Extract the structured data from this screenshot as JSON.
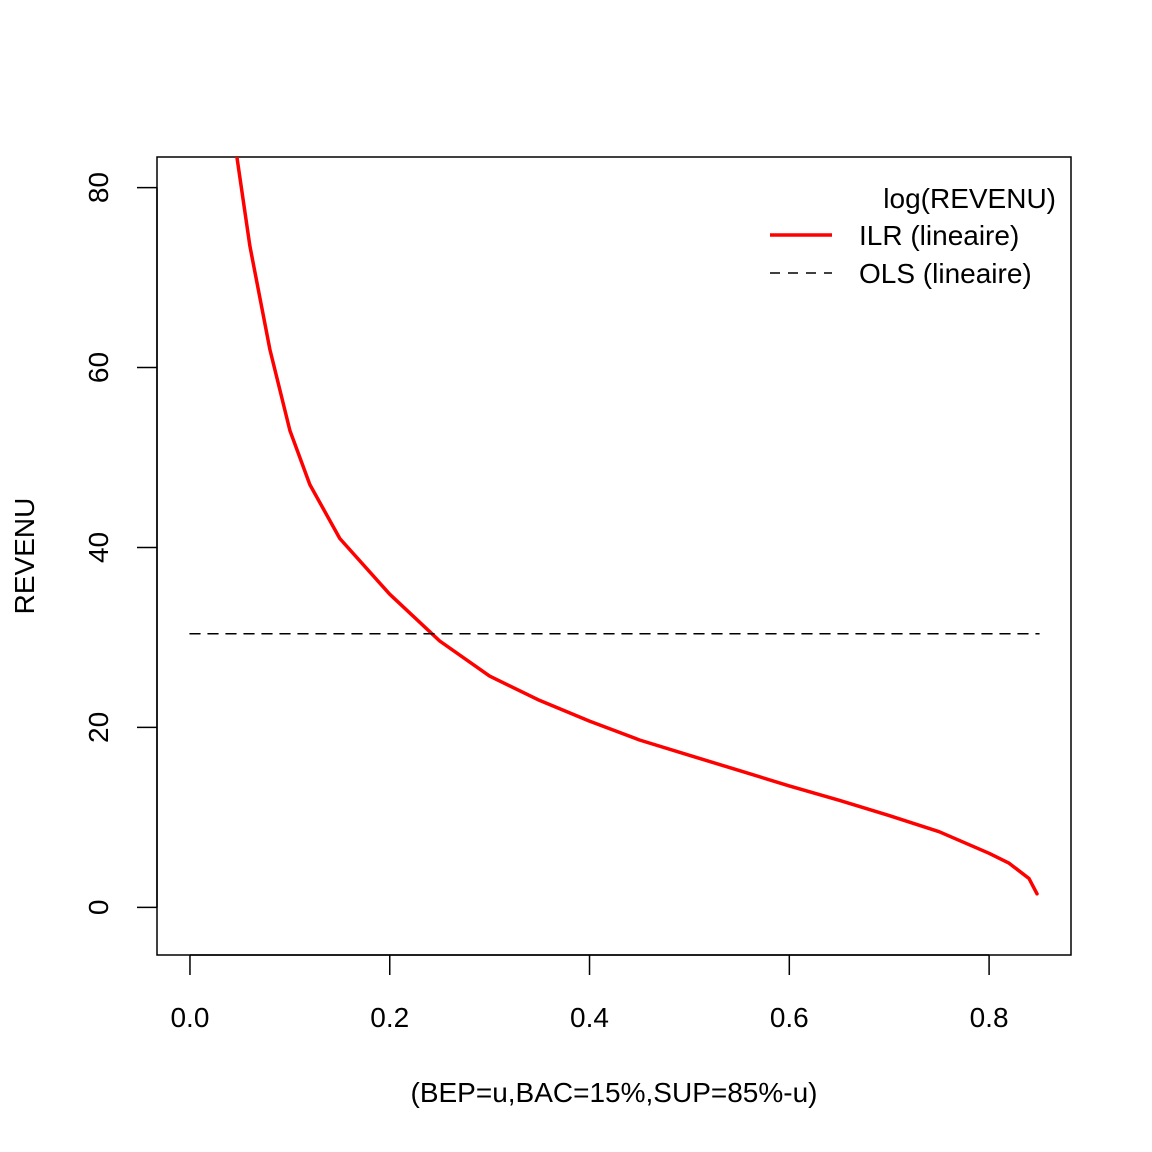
{
  "chart_data": {
    "type": "line",
    "xlabel": "(BEP=u,BAC=15%,SUP=85%-u)",
    "ylabel": "REVENU",
    "xlim": [
      -0.033,
      0.882
    ],
    "ylim": [
      -5.3,
      83.4
    ],
    "x_ticks": [
      "0.0",
      "0.2",
      "0.4",
      "0.6",
      "0.8"
    ],
    "y_ticks": [
      "0",
      "20",
      "40",
      "60",
      "80"
    ],
    "grid": false,
    "legend": {
      "placement": "top-right",
      "title": "log(REVENU)",
      "entries": [
        "ILR (lineaire)",
        "OLS (lineaire)"
      ]
    },
    "colors": {
      "ilr": "#ff0000",
      "ols": "#000000"
    },
    "series": [
      {
        "name": "ILR (lineaire)",
        "style": "solid",
        "x": [
          0.047,
          0.06,
          0.08,
          0.1,
          0.12,
          0.15,
          0.2,
          0.25,
          0.3,
          0.35,
          0.4,
          0.45,
          0.5,
          0.55,
          0.6,
          0.65,
          0.7,
          0.75,
          0.8,
          0.82,
          0.84,
          0.848
        ],
        "y": [
          83.4,
          73.5,
          62.0,
          53.0,
          47.0,
          41.0,
          34.8,
          29.6,
          25.7,
          23.0,
          20.7,
          18.6,
          16.9,
          15.2,
          13.5,
          11.9,
          10.2,
          8.4,
          6.0,
          4.9,
          3.2,
          1.5
        ]
      },
      {
        "name": "OLS (lineaire)",
        "style": "dashed",
        "x": [
          0.0,
          0.85
        ],
        "y": [
          30.4,
          30.4
        ]
      }
    ]
  }
}
